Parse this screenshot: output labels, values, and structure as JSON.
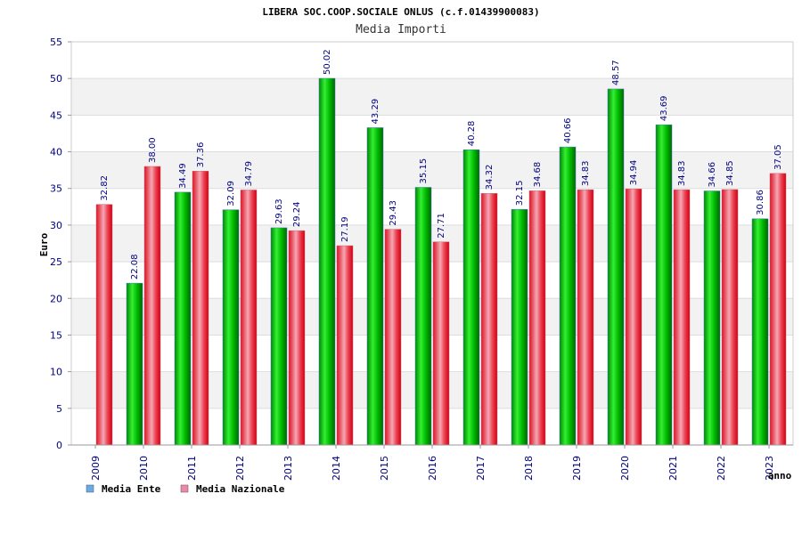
{
  "chart_data": {
    "type": "bar",
    "title": "LIBERA SOC.COOP.SOCIALE ONLUS (c.f.01439900083)",
    "subtitle": "Media Importi",
    "ylabel": "Euro",
    "xlabel": "anno",
    "ylim": [
      0,
      55
    ],
    "yticks": [
      0,
      5,
      10,
      15,
      20,
      25,
      30,
      35,
      40,
      45,
      50,
      55
    ],
    "grid": true,
    "legend_position": "bottom-left",
    "categories": [
      "2009",
      "2010",
      "2011",
      "2012",
      "2013",
      "2014",
      "2015",
      "2016",
      "2017",
      "2018",
      "2019",
      "2020",
      "2021",
      "2022",
      "2023"
    ],
    "series": [
      {
        "name": "Media Ente",
        "color": "#00cc00",
        "legend_color": "#66aaee",
        "values": [
          null,
          22.08,
          34.49,
          32.09,
          29.63,
          50.02,
          43.29,
          35.15,
          40.28,
          32.15,
          40.66,
          48.57,
          43.69,
          34.66,
          30.86
        ],
        "labels": [
          "",
          "22.08",
          "34.49",
          "32.09",
          "29.63",
          "50.02",
          "43.29",
          "35.15",
          "40.28",
          "32.15",
          "40.66",
          "48.57",
          "43.69",
          "34.66",
          "30.86"
        ]
      },
      {
        "name": "Media Nazionale",
        "color": "#ee1122",
        "legend_color": "#ee88aa",
        "values": [
          32.82,
          38.0,
          37.36,
          34.79,
          29.24,
          27.19,
          29.43,
          27.71,
          34.32,
          34.68,
          34.83,
          34.94,
          34.83,
          34.85,
          37.05
        ],
        "labels": [
          "32.82",
          "38.00",
          "37.36",
          "34.79",
          "29.24",
          "27.19",
          "29.43",
          "27.71",
          "34.32",
          "34.68",
          "34.83",
          "34.94",
          "34.83",
          "34.85",
          "37.05"
        ]
      }
    ]
  }
}
